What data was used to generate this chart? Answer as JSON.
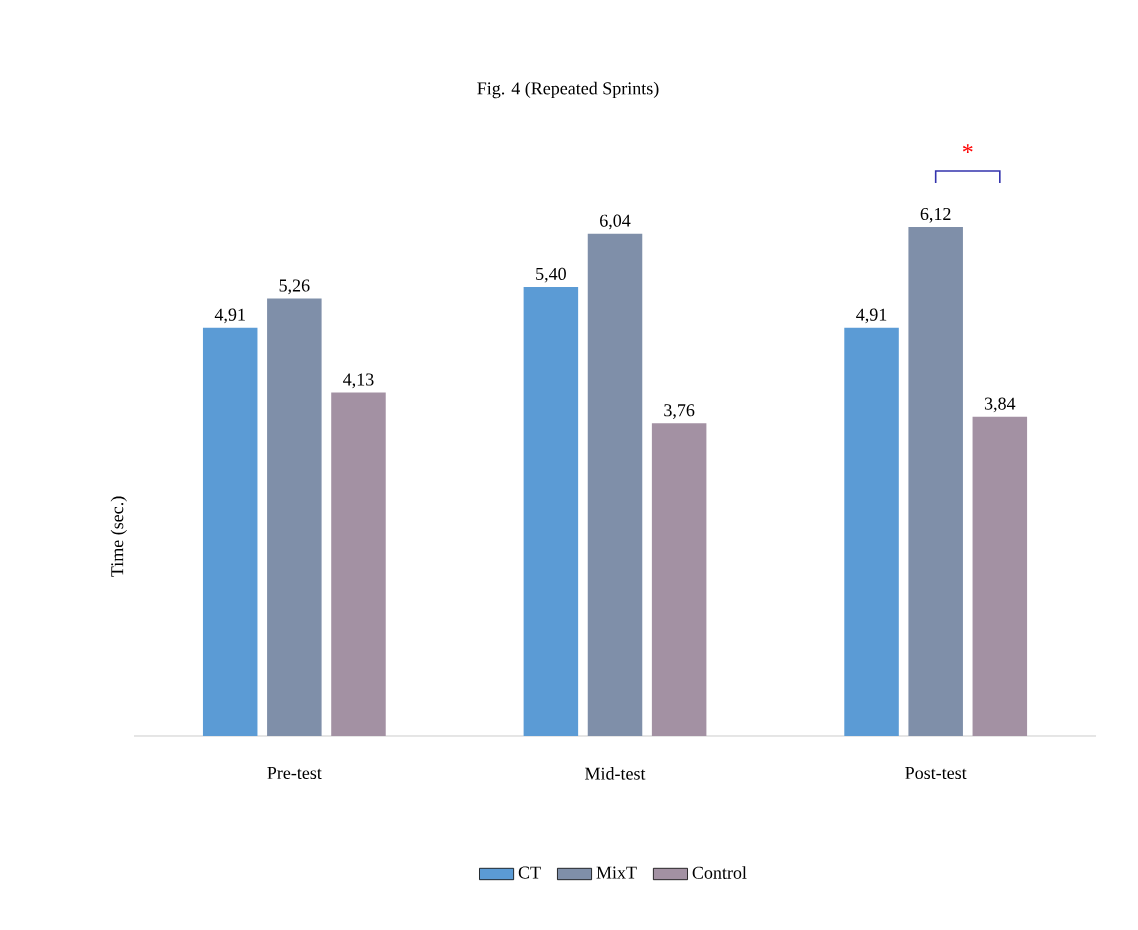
{
  "chart_data": {
    "type": "bar",
    "title": "Fig. 4 (Repeated Sprints)",
    "ylabel": "Time (sec.)",
    "categories": [
      "Pre-test",
      "Mid-test",
      "Post-test"
    ],
    "series": [
      {
        "name": "CT",
        "color": "#5b9bd5",
        "values": [
          4.91,
          5.4,
          4.91
        ],
        "value_labels": [
          "4,91",
          "5,40",
          "4,91"
        ]
      },
      {
        "name": "MixT",
        "color": "#7f8fa9",
        "values": [
          5.26,
          6.04,
          6.12
        ],
        "value_labels": [
          "5,26",
          "6,04",
          "6,12"
        ]
      },
      {
        "name": "Control",
        "color": "#a391a3",
        "values": [
          4.13,
          3.76,
          3.84
        ],
        "value_labels": [
          "4,13",
          "3,76",
          "3,84"
        ]
      }
    ],
    "tick_labels": "x",
    "legend": "bottom",
    "annotations": [
      "*"
    ]
  }
}
